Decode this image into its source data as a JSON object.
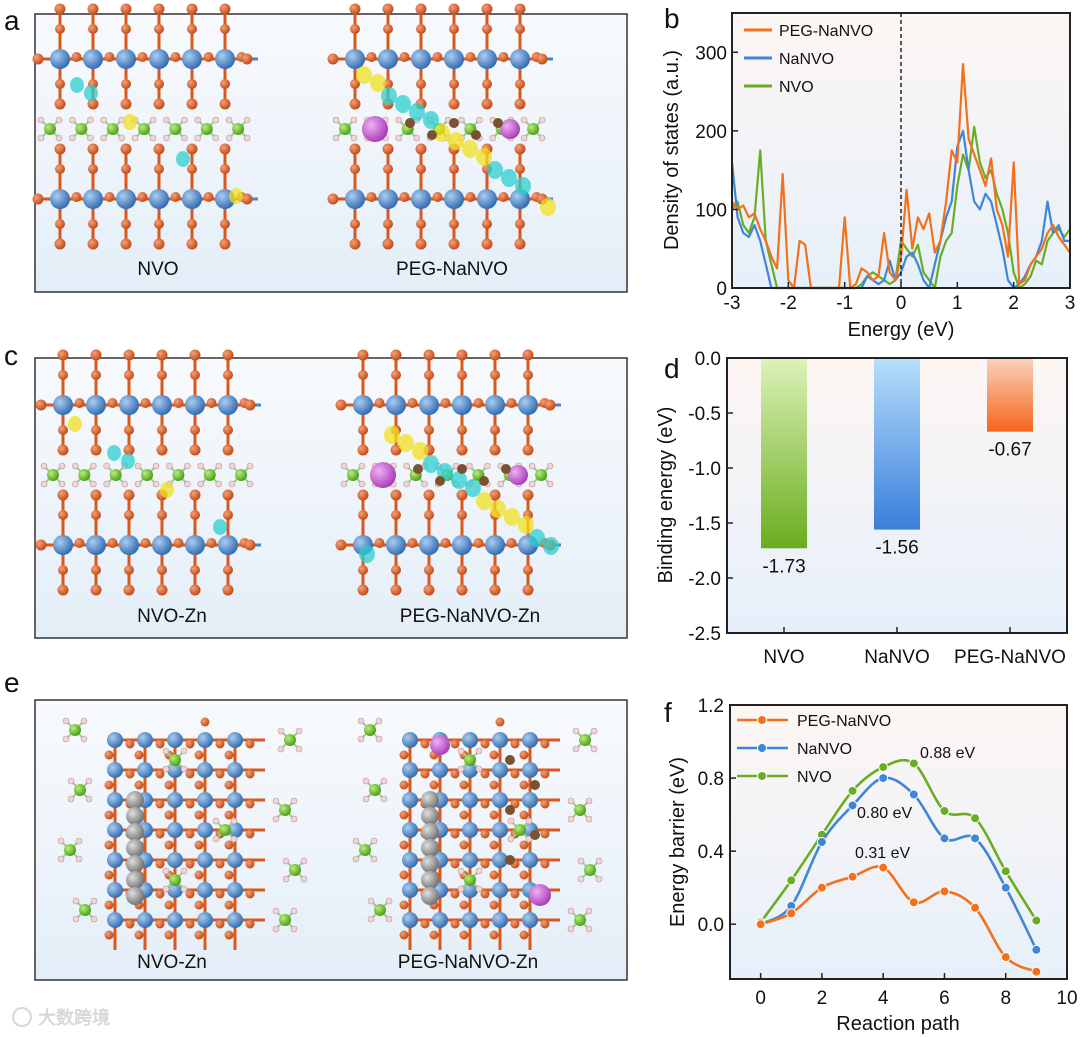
{
  "panels": {
    "a": {
      "letter": "a",
      "labels": [
        "NVO",
        "PEG-NaNVO"
      ]
    },
    "b": {
      "letter": "b"
    },
    "c": {
      "letter": "c",
      "labels": [
        "NVO-Zn",
        "PEG-NaNVO-Zn"
      ]
    },
    "d": {
      "letter": "d"
    },
    "e": {
      "letter": "e",
      "labels": [
        "NVO-Zn",
        "PEG-NaNVO-Zn"
      ]
    },
    "f": {
      "letter": "f"
    }
  },
  "colors": {
    "PEG-NaNVO": "#f2711c",
    "NaNVO": "#3f86d6",
    "NVO": "#6aad24",
    "V": "#4a84c8",
    "O": "#d9581b",
    "N": "#6cc22a",
    "H": "#f1d4d4",
    "Na": "#c653d2",
    "Zn": "#8c8c8c",
    "C": "#7a5232"
  },
  "watermark": "大数跨境",
  "chart_data": [
    {
      "id": "b",
      "type": "line",
      "xlabel": "Energy (eV)",
      "ylabel": "Density of states (a.u.)",
      "xlim": [
        -3,
        3
      ],
      "ylim": [
        0,
        350
      ],
      "xticks": [
        "-3",
        "-2",
        "-1",
        "0",
        "1",
        "2",
        "3"
      ],
      "yticks": [
        "0",
        "100",
        "200",
        "300"
      ],
      "legend": "top-left",
      "annotation": "dashed vertical line at 0 eV",
      "x_start": -3,
      "x_step": 0.1,
      "series": [
        {
          "name": "PEG-NaNVO",
          "values": [
            110,
            100,
            105,
            90,
            95,
            75,
            60,
            40,
            25,
            145,
            10,
            0,
            60,
            55,
            0,
            0,
            0,
            0,
            0,
            0,
            90,
            0,
            5,
            25,
            20,
            10,
            15,
            70,
            20,
            10,
            40,
            125,
            50,
            90,
            75,
            95,
            45,
            60,
            110,
            175,
            160,
            285,
            190,
            170,
            150,
            130,
            165,
            100,
            80,
            40,
            160,
            5,
            10,
            30,
            40,
            50,
            70,
            80,
            65,
            55,
            45
          ]
        },
        {
          "name": "NaNVO",
          "values": [
            160,
            90,
            70,
            65,
            80,
            60,
            30,
            0,
            0,
            0,
            0,
            0,
            0,
            0,
            0,
            0,
            0,
            0,
            0,
            0,
            0,
            0,
            0,
            0,
            15,
            10,
            5,
            10,
            35,
            10,
            20,
            40,
            45,
            30,
            10,
            0,
            30,
            60,
            90,
            110,
            180,
            200,
            150,
            110,
            100,
            120,
            110,
            80,
            50,
            10,
            0,
            5,
            15,
            30,
            40,
            60,
            110,
            70,
            80,
            60,
            60
          ]
        },
        {
          "name": "NVO",
          "values": [
            100,
            110,
            80,
            70,
            90,
            175,
            60,
            30,
            0,
            0,
            0,
            0,
            0,
            0,
            0,
            0,
            0,
            0,
            0,
            0,
            0,
            0,
            0,
            5,
            15,
            20,
            15,
            10,
            5,
            10,
            60,
            50,
            40,
            55,
            20,
            10,
            0,
            40,
            60,
            70,
            130,
            170,
            150,
            205,
            160,
            140,
            150,
            120,
            100,
            70,
            20,
            0,
            5,
            15,
            35,
            30,
            60,
            70,
            75,
            65,
            75
          ]
        }
      ]
    },
    {
      "id": "d",
      "type": "bar",
      "ylabel": "Binding energy (eV)",
      "ylim": [
        -2.5,
        0
      ],
      "yticks": [
        "0.0",
        "-0.5",
        "-1.0",
        "-1.5",
        "-2.0",
        "-2.5"
      ],
      "categories": [
        "NVO",
        "NaNVO",
        "PEG-NaNVO"
      ],
      "values": [
        -1.73,
        -1.56,
        -0.67
      ],
      "data_labels": [
        "-1.73",
        "-1.56",
        "-0.67"
      ]
    },
    {
      "id": "f",
      "type": "line",
      "xlabel": "Reaction path",
      "ylabel": "Energy barrier (eV)",
      "xlim": [
        -1,
        10
      ],
      "ylim": [
        -0.3,
        1.2
      ],
      "xticks": [
        "0",
        "2",
        "4",
        "6",
        "8",
        "10"
      ],
      "yticks": [
        "0.0",
        "0.4",
        "0.8",
        "1.2"
      ],
      "legend": "top-left",
      "x": [
        0,
        1,
        2,
        3,
        4,
        5,
        6,
        7,
        8,
        9
      ],
      "series": [
        {
          "name": "PEG-NaNVO",
          "values": [
            0,
            0.06,
            0.2,
            0.26,
            0.31,
            0.12,
            0.18,
            0.09,
            -0.18,
            -0.26
          ],
          "annotation": "0.31 eV"
        },
        {
          "name": "NaNVO",
          "values": [
            0,
            0.1,
            0.45,
            0.65,
            0.8,
            0.71,
            0.47,
            0.47,
            0.2,
            -0.14
          ],
          "annotation": "0.80 eV"
        },
        {
          "name": "NVO",
          "values": [
            0.01,
            0.24,
            0.49,
            0.73,
            0.86,
            0.88,
            0.62,
            0.58,
            0.29,
            0.02
          ],
          "annotation": "0.88 eV"
        }
      ]
    }
  ]
}
